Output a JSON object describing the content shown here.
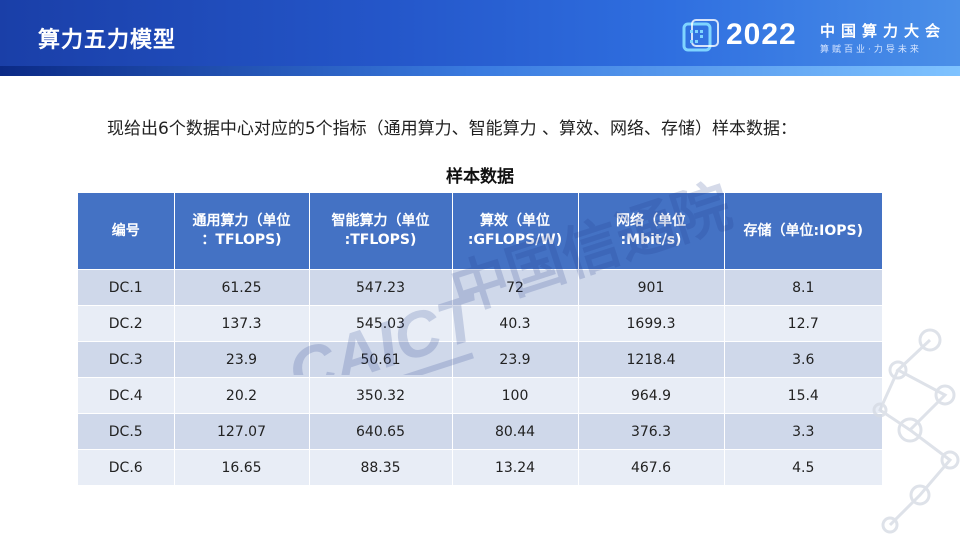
{
  "header": {
    "title": "算力五力模型",
    "conference": {
      "year": "2022",
      "name": "中国算力大会",
      "slogan": "算赋百业·力导未来"
    }
  },
  "intro": "现给出6个数据中心对应的5个指标（通用算力、智能算力 、算效、网络、存储）样本数据：",
  "table": {
    "caption": "样本数据",
    "columns": [
      [
        "编号"
      ],
      [
        "通用算力（单位",
        "：TFLOPS)"
      ],
      [
        "智能算力（单位",
        ":TFLOPS)"
      ],
      [
        "算效（单位",
        ":GFLOPS/W)"
      ],
      [
        "网络（单位",
        ":Mbit/s)"
      ],
      [
        "存储（单位:IOPS)"
      ]
    ],
    "rows": [
      [
        "DC.1",
        "61.25",
        "547.23",
        "72",
        "901",
        "8.1"
      ],
      [
        "DC.2",
        "137.3",
        "545.03",
        "40.3",
        "1699.3",
        "12.7"
      ],
      [
        "DC.3",
        "23.9",
        "50.61",
        "23.9",
        "1218.4",
        "3.6"
      ],
      [
        "DC.4",
        "20.2",
        "350.32",
        "100",
        "964.9",
        "15.4"
      ],
      [
        "DC.5",
        "127.07",
        "640.65",
        "80.44",
        "376.3",
        "3.3"
      ],
      [
        "DC.6",
        "16.65",
        "88.35",
        "13.24",
        "467.6",
        "4.5"
      ]
    ]
  },
  "watermark": {
    "latin": "CAICT",
    "chinese": "中国信通院",
    "color": "#1e3a8a"
  },
  "colors": {
    "header_blue": "#2456c9",
    "table_header": "#4472c4",
    "row_dark": "#cfd8ea",
    "row_light": "#e8edf6"
  }
}
